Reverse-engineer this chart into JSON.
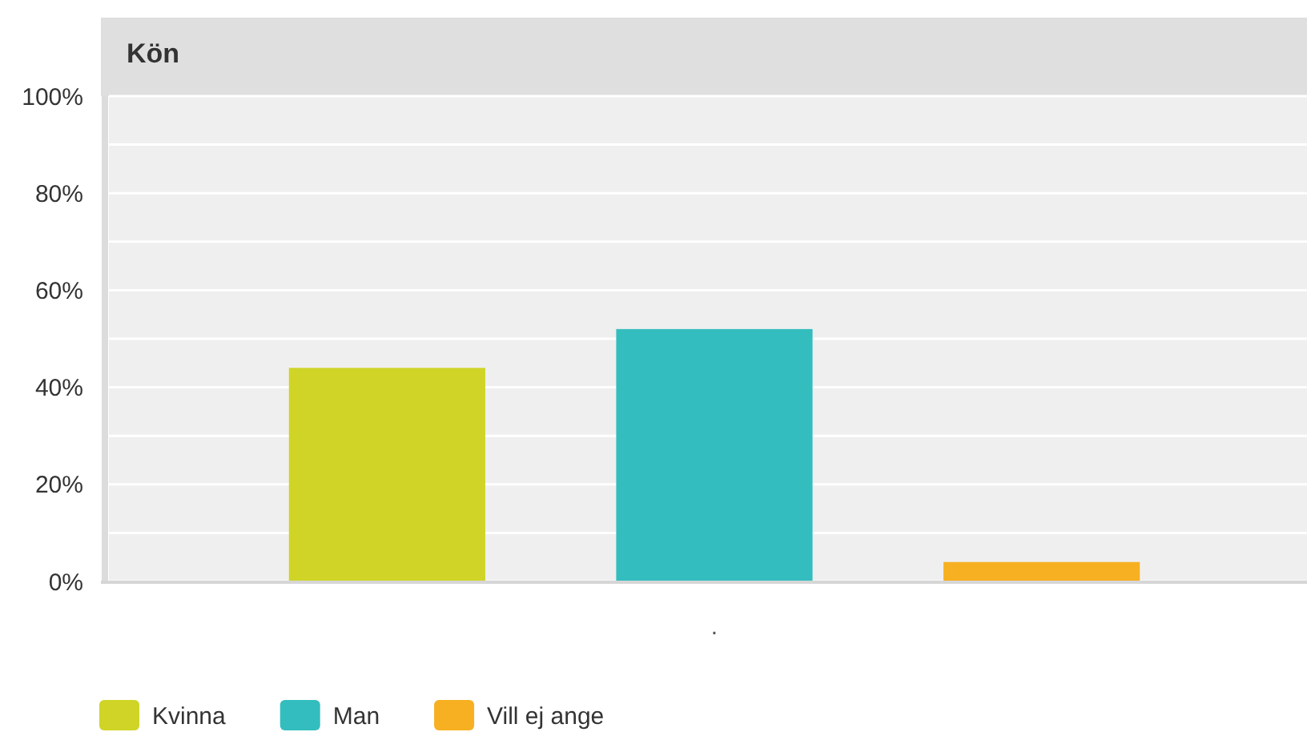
{
  "chart_data": {
    "type": "bar",
    "title": "Kön",
    "categories": [
      "."
    ],
    "series": [
      {
        "name": "Kvinna",
        "color": "#cfd427",
        "values": [
          44
        ]
      },
      {
        "name": "Man",
        "color": "#34bdbf",
        "values": [
          52
        ]
      },
      {
        "name": "Vill ej ange",
        "color": "#f6b021",
        "values": [
          4
        ]
      }
    ],
    "ylim": [
      0,
      100
    ],
    "yticks": [
      {
        "value": 0,
        "label": "0%"
      },
      {
        "value": 10,
        "label": null
      },
      {
        "value": 20,
        "label": "20%"
      },
      {
        "value": 30,
        "label": null
      },
      {
        "value": 40,
        "label": "40%"
      },
      {
        "value": 50,
        "label": null
      },
      {
        "value": 60,
        "label": "60%"
      },
      {
        "value": 70,
        "label": null
      },
      {
        "value": 80,
        "label": "80%"
      },
      {
        "value": 90,
        "label": null
      },
      {
        "value": 100,
        "label": "100%"
      }
    ],
    "grid": "y",
    "legend": "bottom left"
  }
}
